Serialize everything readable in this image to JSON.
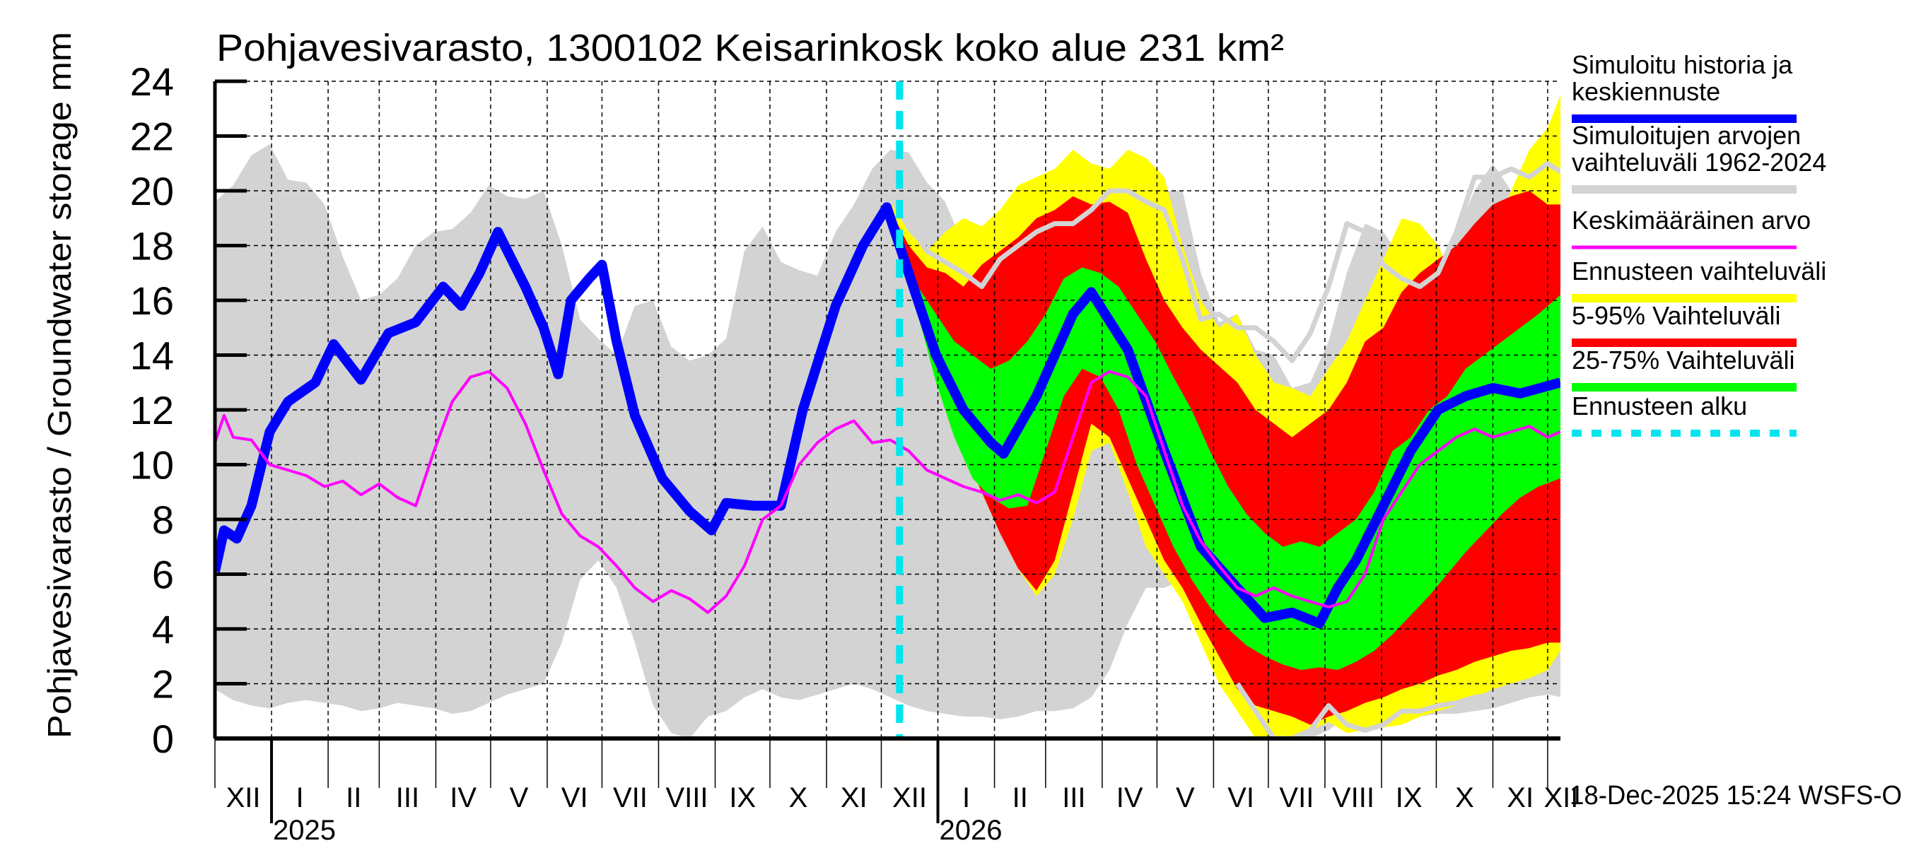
{
  "chart_data": {
    "type": "area",
    "title": "Pohjavesivarasto, 1300102 Keisarinkosk koko alue 231 km²",
    "ylabel": "Pohjavesivarasto / Groundwater storage   mm",
    "xlabel": "",
    "ylim": [
      0,
      24
    ],
    "yticks": [
      "0",
      "2",
      "4",
      "6",
      "8",
      "10",
      "12",
      "14",
      "16",
      "18",
      "20",
      "22",
      "24"
    ],
    "x_unit": "days since 2024-12-01",
    "xlim": [
      0,
      737
    ],
    "month_ticks": [
      {
        "day": 0,
        "label": "XII"
      },
      {
        "day": 31,
        "label": "I"
      },
      {
        "day": 62,
        "label": "II"
      },
      {
        "day": 90,
        "label": "III"
      },
      {
        "day": 121,
        "label": "IV"
      },
      {
        "day": 151,
        "label": "V"
      },
      {
        "day": 182,
        "label": "VI"
      },
      {
        "day": 212,
        "label": "VII"
      },
      {
        "day": 243,
        "label": "VIII"
      },
      {
        "day": 274,
        "label": "IX"
      },
      {
        "day": 304,
        "label": "X"
      },
      {
        "day": 335,
        "label": "XI"
      },
      {
        "day": 365,
        "label": "XII"
      },
      {
        "day": 396,
        "label": "I"
      },
      {
        "day": 427,
        "label": "II"
      },
      {
        "day": 455,
        "label": "III"
      },
      {
        "day": 486,
        "label": "IV"
      },
      {
        "day": 516,
        "label": "V"
      },
      {
        "day": 547,
        "label": "VI"
      },
      {
        "day": 577,
        "label": "VII"
      },
      {
        "day": 608,
        "label": "VIII"
      },
      {
        "day": 639,
        "label": "IX"
      },
      {
        "day": 669,
        "label": "X"
      },
      {
        "day": 700,
        "label": "XI"
      },
      {
        "day": 730,
        "label": "XII"
      }
    ],
    "year_ticks": [
      {
        "day": 31,
        "label": "2025"
      },
      {
        "day": 396,
        "label": "2026"
      }
    ],
    "forecast_start_day": 375,
    "grid": true,
    "legend_position": "right",
    "legend": [
      {
        "label": "Simuloitu historia ja keskiennuste",
        "color": "#0000ff",
        "style": "thick-line"
      },
      {
        "label": "Simuloitujen arvojen vaihteluväli 1962-2024",
        "color": "#d3d3d3",
        "style": "band"
      },
      {
        "label": "Keskimääräinen arvo",
        "color": "#ff00ff",
        "style": "line"
      },
      {
        "label": "Ennusteen vaihteluväli",
        "color": "#ffff00",
        "style": "band"
      },
      {
        "label": "5-95% Vaihteluväli",
        "color": "#ff0000",
        "style": "band"
      },
      {
        "label": "25-75% Vaihteluväli",
        "color": "#00ff00",
        "style": "band"
      },
      {
        "label": "Ennusteen alku",
        "color": "#00e5ee",
        "style": "dashed"
      }
    ],
    "series": [
      {
        "name": "Simuloitujen arvojen vaihteluväli 1962-2024",
        "kind": "band",
        "color": "#d3d3d3",
        "x": [
          0,
          10,
          20,
          30,
          40,
          50,
          60,
          70,
          80,
          90,
          100,
          110,
          120,
          130,
          140,
          150,
          160,
          170,
          180,
          190,
          200,
          210,
          220,
          230,
          240,
          250,
          260,
          270,
          280,
          290,
          300,
          310,
          320,
          330,
          340,
          350,
          360,
          370,
          380,
          390,
          400,
          410,
          420,
          430,
          440,
          450,
          460,
          470,
          480,
          490,
          500,
          510,
          520,
          530,
          540,
          550,
          560,
          570,
          580,
          590,
          600,
          610,
          620,
          630,
          640,
          650,
          660,
          670,
          680,
          690,
          700,
          710,
          720,
          730,
          737
        ],
        "upper": [
          19.6,
          20.2,
          21.3,
          21.7,
          20.4,
          20.3,
          19.5,
          17.6,
          16.0,
          16.2,
          16.8,
          18.0,
          18.5,
          18.6,
          19.2,
          20.2,
          19.8,
          19.7,
          20.0,
          18.0,
          15.3,
          14.6,
          14.0,
          15.8,
          16.0,
          14.3,
          13.8,
          14.0,
          14.6,
          17.8,
          18.7,
          17.4,
          17.1,
          16.9,
          18.5,
          19.5,
          20.8,
          21.5,
          21.4,
          20.3,
          19.6,
          18.0,
          17.5,
          17.2,
          17.8,
          18.5,
          18.7,
          19.0,
          19.5,
          20.0,
          20.2,
          20.5,
          20.0,
          20.0,
          17.0,
          15.2,
          15.5,
          14.2,
          14.0,
          12.8,
          13.0,
          14.5,
          17.0,
          18.8,
          18.5,
          17.5,
          16.8,
          17.0,
          18.5,
          20.0,
          21.0,
          20.0,
          20.5,
          21.0,
          21.2
        ],
        "lower": [
          1.8,
          1.4,
          1.2,
          1.1,
          1.3,
          1.4,
          1.3,
          1.2,
          1.0,
          1.1,
          1.3,
          1.2,
          1.1,
          0.9,
          1.0,
          1.3,
          1.6,
          1.8,
          2.0,
          3.5,
          5.8,
          6.5,
          5.5,
          3.5,
          1.2,
          0.2,
          0.0,
          0.8,
          1.0,
          1.5,
          1.8,
          1.5,
          1.4,
          1.6,
          1.8,
          2.0,
          1.8,
          1.5,
          1.2,
          1.0,
          0.9,
          0.8,
          0.8,
          0.7,
          0.8,
          1.0,
          1.0,
          1.1,
          1.5,
          2.5,
          4.2,
          5.5,
          5.5,
          5.8,
          5.0,
          2.8,
          1.8,
          0.8,
          0.2,
          0.0,
          0.0,
          0.3,
          0.8,
          0.5,
          0.5,
          0.5,
          0.8,
          0.9,
          0.9,
          1.0,
          1.1,
          1.3,
          1.5,
          1.6,
          1.6
        ]
      },
      {
        "name": "Ennusteen vaihteluväli",
        "kind": "band",
        "color": "#ffff00",
        "x": [
          370,
          380,
          390,
          400,
          410,
          420,
          430,
          440,
          450,
          460,
          470,
          480,
          490,
          500,
          510,
          520,
          530,
          540,
          550,
          560,
          570,
          580,
          590,
          600,
          610,
          620,
          630,
          640,
          650,
          660,
          670,
          680,
          690,
          700,
          710,
          720,
          730,
          737
        ],
        "upper": [
          19.6,
          18.5,
          17.8,
          18.5,
          19.0,
          18.7,
          19.3,
          20.2,
          20.5,
          20.8,
          21.5,
          21.0,
          20.8,
          21.5,
          21.2,
          20.5,
          18.0,
          16.0,
          15.0,
          15.5,
          14.0,
          13.0,
          12.8,
          12.5,
          13.5,
          14.5,
          16.0,
          17.5,
          19.0,
          18.8,
          18.0,
          16.5,
          17.0,
          18.5,
          20.0,
          21.5,
          22.3,
          23.5
        ],
        "lower": [
          19.6,
          17.5,
          15.0,
          12.5,
          10.5,
          9.0,
          7.5,
          6.2,
          5.2,
          6.0,
          8.0,
          10.5,
          10.8,
          9.0,
          7.0,
          6.0,
          5.0,
          3.5,
          2.0,
          1.0,
          0.0,
          0.0,
          0.0,
          0.3,
          0.6,
          0.2,
          0.3,
          0.4,
          0.5,
          0.8,
          1.0,
          1.2,
          1.5,
          1.8,
          2.0,
          2.2,
          2.5,
          3.2
        ]
      },
      {
        "name": "5-95% Vaihteluväli",
        "kind": "band",
        "color": "#ff0000",
        "x": [
          370,
          380,
          390,
          400,
          410,
          420,
          430,
          440,
          450,
          460,
          470,
          480,
          490,
          500,
          510,
          520,
          530,
          540,
          550,
          560,
          570,
          580,
          590,
          600,
          610,
          620,
          630,
          640,
          650,
          660,
          670,
          680,
          690,
          700,
          710,
          720,
          730,
          737
        ],
        "upper": [
          19.3,
          18.0,
          17.2,
          17.0,
          16.5,
          17.3,
          17.8,
          18.3,
          19.0,
          19.3,
          19.8,
          19.5,
          19.6,
          19.2,
          17.5,
          16.0,
          15.0,
          14.2,
          13.6,
          13.0,
          12.0,
          11.5,
          11.0,
          11.5,
          12.0,
          13.0,
          14.5,
          15.0,
          16.3,
          17.0,
          17.5,
          18.0,
          18.8,
          19.5,
          19.8,
          20.0,
          19.5,
          19.5
        ],
        "lower": [
          19.3,
          17.2,
          14.8,
          12.5,
          10.5,
          9.0,
          7.5,
          6.2,
          5.4,
          6.5,
          9.0,
          11.5,
          11.0,
          9.5,
          8.0,
          6.5,
          5.5,
          4.2,
          3.0,
          1.8,
          1.2,
          1.0,
          0.8,
          0.5,
          0.8,
          1.0,
          1.3,
          1.5,
          1.8,
          2.0,
          2.3,
          2.5,
          2.8,
          3.0,
          3.2,
          3.3,
          3.5,
          3.5
        ]
      },
      {
        "name": "25-75% Vaihteluväli",
        "kind": "band",
        "color": "#00ff00",
        "x": [
          376,
          385,
          395,
          405,
          415,
          425,
          435,
          445,
          455,
          465,
          475,
          485,
          495,
          505,
          515,
          525,
          535,
          545,
          555,
          565,
          575,
          585,
          595,
          605,
          615,
          625,
          635,
          645,
          655,
          665,
          675,
          685,
          695,
          705,
          715,
          725,
          737
        ],
        "upper": [
          17.5,
          16.5,
          15.5,
          14.5,
          14.0,
          13.5,
          13.8,
          14.5,
          15.5,
          16.8,
          17.2,
          17.0,
          16.5,
          15.5,
          14.5,
          13.2,
          12.0,
          10.5,
          9.2,
          8.2,
          7.5,
          7.0,
          7.2,
          7.0,
          7.5,
          8.0,
          9.0,
          10.5,
          11.0,
          12.0,
          12.5,
          13.5,
          14.0,
          14.5,
          15.0,
          15.5,
          16.2
        ],
        "lower": [
          17.5,
          15.5,
          13.0,
          11.0,
          9.5,
          8.8,
          8.4,
          8.5,
          10.5,
          12.5,
          13.5,
          13.2,
          12.0,
          10.0,
          8.5,
          7.0,
          5.8,
          4.8,
          4.0,
          3.4,
          3.0,
          2.7,
          2.5,
          2.6,
          2.5,
          2.8,
          3.2,
          3.8,
          4.5,
          5.2,
          6.0,
          6.8,
          7.5,
          8.2,
          8.8,
          9.2,
          9.5
        ]
      },
      {
        "name": "Simuloitu historia ja keskiennuste",
        "kind": "line",
        "color": "#0000ff",
        "x": [
          0,
          5,
          12,
          20,
          30,
          40,
          55,
          65,
          80,
          95,
          110,
          125,
          135,
          145,
          155,
          170,
          180,
          188,
          195,
          205,
          212,
          220,
          230,
          245,
          260,
          272,
          280,
          295,
          310,
          322,
          340,
          355,
          368,
          380,
          395,
          410,
          425,
          432,
          450,
          470,
          480,
          500,
          520,
          540,
          560,
          575,
          590,
          605,
          615,
          625,
          640,
          655,
          670,
          685,
          700,
          715,
          737
        ],
        "y": [
          6.1,
          7.6,
          7.3,
          8.5,
          11.2,
          12.3,
          13.0,
          14.4,
          13.1,
          14.8,
          15.2,
          16.5,
          15.8,
          17.0,
          18.5,
          16.5,
          15.0,
          13.3,
          16.0,
          16.8,
          17.3,
          14.5,
          11.8,
          9.5,
          8.3,
          7.6,
          8.6,
          8.5,
          8.5,
          12.0,
          15.8,
          18.0,
          19.4,
          17.0,
          14.0,
          12.0,
          10.8,
          10.4,
          12.5,
          15.5,
          16.3,
          14.2,
          10.5,
          7.0,
          5.5,
          4.4,
          4.6,
          4.2,
          5.5,
          6.5,
          8.5,
          10.5,
          12.0,
          12.5,
          12.8,
          12.6,
          13.0
        ]
      },
      {
        "name": "Keskimääräinen arvo",
        "kind": "line",
        "color": "#ff00ff",
        "x": [
          0,
          5,
          10,
          20,
          30,
          40,
          50,
          60,
          70,
          80,
          90,
          100,
          110,
          120,
          130,
          140,
          150,
          160,
          170,
          180,
          190,
          200,
          210,
          220,
          230,
          240,
          250,
          260,
          270,
          280,
          290,
          300,
          310,
          320,
          330,
          340,
          350,
          360,
          370,
          380,
          390,
          400,
          410,
          420,
          430,
          440,
          450,
          460,
          470,
          480,
          490,
          500,
          510,
          520,
          530,
          540,
          550,
          560,
          570,
          580,
          590,
          600,
          610,
          620,
          630,
          640,
          650,
          660,
          670,
          680,
          690,
          700,
          710,
          720,
          730,
          737
        ],
        "y": [
          10.8,
          11.8,
          11.0,
          10.9,
          10.0,
          9.8,
          9.6,
          9.2,
          9.4,
          8.9,
          9.3,
          8.8,
          8.5,
          10.5,
          12.3,
          13.2,
          13.4,
          12.8,
          11.5,
          9.8,
          8.2,
          7.4,
          7.0,
          6.3,
          5.5,
          5.0,
          5.4,
          5.1,
          4.6,
          5.2,
          6.3,
          8.0,
          8.5,
          10.0,
          10.8,
          11.3,
          11.6,
          10.8,
          10.9,
          10.5,
          9.8,
          9.5,
          9.2,
          9.0,
          8.7,
          8.9,
          8.6,
          9.0,
          11.0,
          13.0,
          13.4,
          13.2,
          12.5,
          10.5,
          8.5,
          7.2,
          6.3,
          5.5,
          5.2,
          5.5,
          5.2,
          5.0,
          4.8,
          5.0,
          6.0,
          8.0,
          9.0,
          10.0,
          10.5,
          11.0,
          11.3,
          11.0,
          11.2,
          11.4,
          11.0,
          11.2
        ]
      },
      {
        "name": "Ennusteen max (harmaa viiva)",
        "kind": "line",
        "color": "#d3d3d3",
        "x": [
          375,
          390,
          410,
          420,
          430,
          440,
          450,
          460,
          470,
          480,
          490,
          500,
          510,
          520,
          530,
          540,
          550,
          560,
          570,
          580,
          590,
          600,
          610,
          620,
          630,
          640,
          650,
          660,
          670,
          680,
          690,
          700,
          710,
          720,
          730,
          737
        ],
        "y": [
          19.3,
          17.8,
          17.0,
          16.5,
          17.5,
          18.0,
          18.5,
          18.8,
          18.8,
          19.3,
          20.0,
          20.0,
          19.6,
          19.3,
          17.5,
          15.3,
          15.5,
          15.0,
          15.0,
          14.5,
          13.8,
          14.8,
          16.5,
          18.8,
          18.5,
          17.3,
          16.8,
          16.5,
          17.0,
          18.5,
          20.5,
          20.5,
          20.8,
          20.5,
          21.0,
          20.7
        ]
      },
      {
        "name": "Ennusteen min (harmaa viiva)",
        "kind": "line",
        "color": "#d3d3d3",
        "x": [
          560,
          570,
          580,
          590,
          600,
          610,
          620,
          630,
          640,
          650,
          660,
          670,
          680,
          690,
          700,
          710,
          720,
          730,
          737
        ],
        "y": [
          2.0,
          1.0,
          0.0,
          0.0,
          0.3,
          1.2,
          0.5,
          0.3,
          0.5,
          1.0,
          1.0,
          1.2,
          1.3,
          1.5,
          1.6,
          1.7,
          1.8,
          1.7,
          1.6
        ]
      }
    ],
    "timestamp": "18-Dec-2025 15:24 WSFS-O"
  }
}
